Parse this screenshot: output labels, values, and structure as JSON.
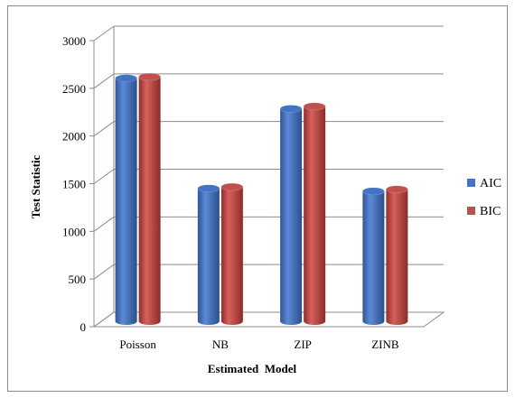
{
  "chart_data": {
    "type": "bar",
    "style": "3d-cylinder",
    "categories": [
      "Poisson",
      "NB",
      "ZIP",
      "ZINB"
    ],
    "series": [
      {
        "name": "AIC",
        "values": [
          2530,
          1375,
          2210,
          1345
        ],
        "color": "#4472c4"
      },
      {
        "name": "BIC",
        "values": [
          2545,
          1390,
          2235,
          1365
        ],
        "color": "#c0504d"
      }
    ],
    "title": "",
    "xlabel": "Estimated  Model",
    "ylabel": "Test Statistic",
    "ylim": [
      0,
      3000
    ],
    "yticks": [
      0,
      500,
      1000,
      1500,
      2000,
      2500,
      3000
    ],
    "grid": true,
    "legend_position": "right"
  }
}
